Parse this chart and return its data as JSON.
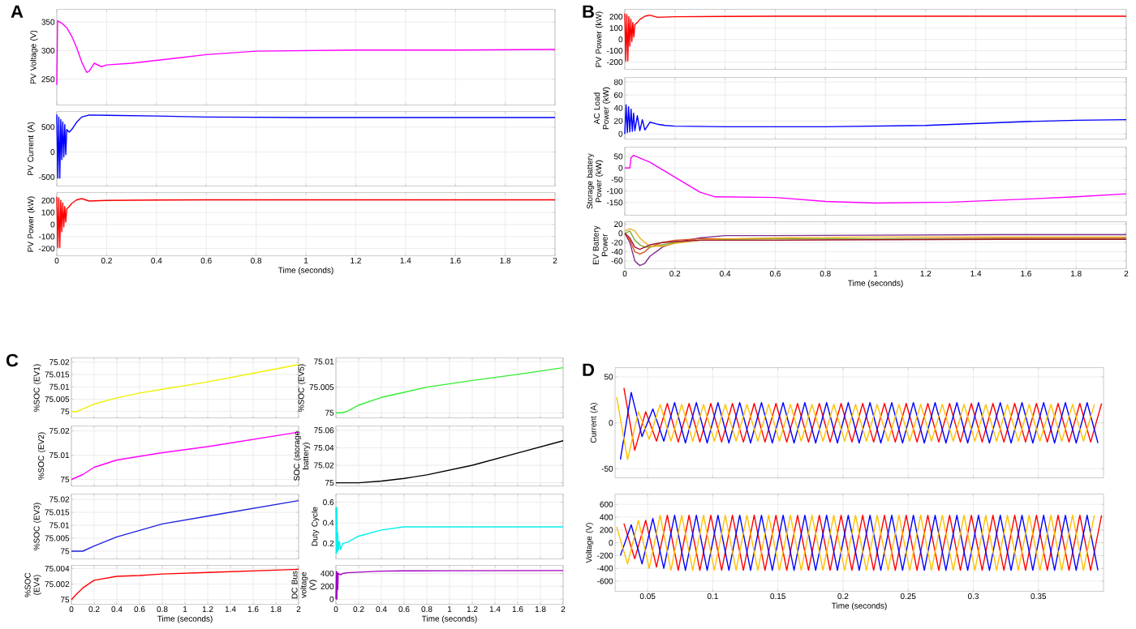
{
  "chart_data": [
    {
      "type": "line",
      "title": "A",
      "ylabel": "PV Voltage (V)",
      "grid": true,
      "tick_labels": "y",
      "xlim": [
        0,
        2
      ],
      "xticks": [
        0,
        0.2,
        0.4,
        0.6,
        0.8,
        1,
        1.2,
        1.4,
        1.6,
        1.8,
        2
      ],
      "ylim": [
        205,
        372
      ],
      "yticks": [
        250,
        300,
        350
      ],
      "x": [
        0,
        0.003,
        0.02,
        0.04,
        0.06,
        0.08,
        0.1,
        0.12,
        0.13,
        0.15,
        0.18,
        0.2,
        0.3,
        0.4,
        0.5,
        0.6,
        0.8,
        1,
        1.2,
        1.6,
        2
      ],
      "series": [
        {
          "color": "#ff00ff",
          "values": [
            240,
            352,
            348,
            340,
            325,
            305,
            280,
            262,
            264,
            278,
            272,
            275,
            278,
            283,
            288,
            293,
            299,
            300,
            301,
            301,
            302
          ]
        }
      ]
    },
    {
      "type": "line",
      "ylabel": "PV Current (A)",
      "grid": true,
      "tick_labels": "y",
      "xlim": [
        0,
        2
      ],
      "xticks": [
        0,
        0.2,
        0.4,
        0.6,
        0.8,
        1,
        1.2,
        1.4,
        1.6,
        1.8,
        2
      ],
      "ylim": [
        -680,
        810
      ],
      "yticks": [
        -500,
        0,
        500
      ],
      "x": [
        0,
        0.004,
        0.008,
        0.012,
        0.016,
        0.02,
        0.024,
        0.028,
        0.032,
        0.036,
        0.04,
        0.045,
        0.05,
        0.06,
        0.08,
        0.1,
        0.13,
        0.2,
        0.4,
        0.6,
        1,
        2
      ],
      "series": [
        {
          "color": "#0000ff",
          "values": [
            750,
            -520,
            700,
            -520,
            650,
            -150,
            600,
            -100,
            550,
            -50,
            450,
            420,
            400,
            450,
            600,
            700,
            740,
            735,
            720,
            700,
            690,
            690
          ]
        }
      ]
    },
    {
      "type": "line",
      "xlabel": "Time (seconds)",
      "ylabel": "PV Power (kW)",
      "grid": true,
      "xlim": [
        0,
        2
      ],
      "xticks": [
        0,
        0.2,
        0.4,
        0.6,
        0.8,
        1,
        1.2,
        1.4,
        1.6,
        1.8,
        2
      ],
      "ylim": [
        -260,
        265
      ],
      "yticks": [
        -200,
        -100,
        0,
        100,
        200
      ],
      "x": [
        0,
        0.004,
        0.008,
        0.012,
        0.016,
        0.02,
        0.024,
        0.028,
        0.032,
        0.036,
        0.04,
        0.045,
        0.05,
        0.06,
        0.08,
        0.1,
        0.13,
        0.2,
        0.4,
        0.6,
        1,
        2
      ],
      "series": [
        {
          "color": "#ff0000",
          "values": [
            230,
            -190,
            220,
            -190,
            200,
            -60,
            180,
            -20,
            150,
            20,
            130,
            140,
            150,
            175,
            205,
            215,
            195,
            200,
            203,
            205,
            205,
            205
          ]
        }
      ]
    },
    {
      "type": "line",
      "title": "B",
      "ylabel": "PV Power (kW)",
      "grid": true,
      "tick_labels": "y",
      "xlim": [
        0,
        2
      ],
      "xticks": [
        0,
        0.2,
        0.4,
        0.6,
        0.8,
        1,
        1.2,
        1.4,
        1.6,
        1.8,
        2
      ],
      "ylim": [
        -265,
        265
      ],
      "yticks": [
        -200,
        -100,
        0,
        100,
        200
      ],
      "x": [
        0,
        0.004,
        0.008,
        0.012,
        0.016,
        0.02,
        0.024,
        0.028,
        0.032,
        0.036,
        0.04,
        0.045,
        0.05,
        0.06,
        0.08,
        0.1,
        0.13,
        0.2,
        0.4,
        0.6,
        1,
        2
      ],
      "series": [
        {
          "color": "#ff0000",
          "values": [
            230,
            -190,
            220,
            -190,
            200,
            -60,
            180,
            -20,
            150,
            20,
            130,
            140,
            150,
            175,
            205,
            215,
            195,
            200,
            203,
            205,
            205,
            205
          ]
        }
      ]
    },
    {
      "type": "line",
      "ylabel": "AC Load Power (kW)",
      "grid": true,
      "tick_labels": "y",
      "xlim": [
        0,
        2
      ],
      "xticks": [
        0,
        0.2,
        0.4,
        0.6,
        0.8,
        1,
        1.2,
        1.4,
        1.6,
        1.8,
        2
      ],
      "ylim": [
        -8,
        87
      ],
      "yticks": [
        0,
        20,
        40,
        60,
        80
      ],
      "x": [
        0,
        0.005,
        0.01,
        0.015,
        0.02,
        0.025,
        0.03,
        0.035,
        0.04,
        0.05,
        0.06,
        0.07,
        0.08,
        0.1,
        0.13,
        0.16,
        0.2,
        0.4,
        0.8,
        1.2,
        1.4,
        1.6,
        1.8,
        2
      ],
      "series": [
        {
          "color": "#0000ff",
          "values": [
            0,
            45,
            2,
            42,
            3,
            38,
            4,
            32,
            5,
            28,
            5,
            22,
            6,
            18,
            15,
            13,
            12,
            11,
            11,
            13,
            16,
            19,
            21,
            22
          ]
        }
      ]
    },
    {
      "type": "line",
      "ylabel": "Storage battery Power (kW)",
      "grid": true,
      "tick_labels": "y",
      "xlim": [
        0,
        2
      ],
      "xticks": [
        0,
        0.2,
        0.4,
        0.6,
        0.8,
        1,
        1.2,
        1.4,
        1.6,
        1.8,
        2
      ],
      "ylim": [
        -205,
        90
      ],
      "yticks": [
        -150,
        -100,
        -50,
        0,
        50
      ],
      "x": [
        0,
        0.02,
        0.025,
        0.035,
        0.05,
        0.1,
        0.2,
        0.3,
        0.36,
        0.6,
        0.8,
        1,
        1.3,
        1.6,
        1.8,
        2
      ],
      "series": [
        {
          "color": "#ff00ff",
          "values": [
            0,
            0,
            45,
            55,
            48,
            25,
            -40,
            -105,
            -125,
            -128,
            -145,
            -152,
            -148,
            -135,
            -125,
            -112
          ]
        }
      ]
    },
    {
      "type": "line",
      "xlabel": "Time (seconds)",
      "ylabel": "EV Battery Power",
      "grid": true,
      "xlim": [
        0,
        2
      ],
      "xticks": [
        0,
        0.2,
        0.4,
        0.6,
        0.8,
        1,
        1.2,
        1.4,
        1.6,
        1.8,
        2
      ],
      "ylim": [
        -77,
        25
      ],
      "yticks": [
        -60,
        -40,
        -20,
        0,
        20
      ],
      "x": [
        0,
        0.02,
        0.04,
        0.06,
        0.08,
        0.1,
        0.15,
        0.2,
        0.3,
        0.4,
        0.6,
        1,
        1.5,
        2
      ],
      "series": [
        {
          "color": "#7e2f8e",
          "values": [
            0,
            -20,
            -60,
            -70,
            -65,
            -50,
            -30,
            -20,
            -10,
            -5,
            -5,
            -4,
            -3,
            -3
          ]
        },
        {
          "color": "#d95319",
          "values": [
            0,
            -15,
            -40,
            -45,
            -40,
            -30,
            -20,
            -15,
            -12,
            -12,
            -12,
            -12,
            -11,
            -11
          ]
        },
        {
          "color": "#77ac30",
          "values": [
            0,
            5,
            -15,
            -25,
            -30,
            -30,
            -25,
            -20,
            -15,
            -13,
            -12,
            -12,
            -12,
            -12
          ]
        },
        {
          "color": "#edb120",
          "values": [
            5,
            10,
            5,
            -10,
            -20,
            -28,
            -28,
            -22,
            -15,
            -12,
            -10,
            -8,
            -8,
            -8
          ]
        },
        {
          "color": "#a2142f",
          "values": [
            0,
            -10,
            -30,
            -35,
            -30,
            -25,
            -20,
            -18,
            -15,
            -15,
            -15,
            -14,
            -13,
            -13
          ]
        }
      ]
    },
    {
      "type": "line",
      "title": "C",
      "ylabel": "%SOC (EV1)",
      "grid": true,
      "tick_labels": "y",
      "xlim": [
        0,
        2
      ],
      "xticks": [
        0,
        0.2,
        0.4,
        0.6,
        0.8,
        1,
        1.2,
        1.4,
        1.6,
        1.8,
        2
      ],
      "ylim": [
        74.9974,
        75.0217
      ],
      "yticks": [
        75,
        75.005,
        75.01,
        75.015,
        75.02
      ],
      "x": [
        0,
        0.05,
        0.1,
        0.2,
        0.4,
        0.6,
        0.8,
        1.2,
        1.6,
        2
      ],
      "series": [
        {
          "color": "#f0f000",
          "values": [
            75,
            75,
            75.001,
            75.003,
            75.0055,
            75.0075,
            75.009,
            75.012,
            75.0155,
            75.019
          ]
        }
      ]
    },
    {
      "type": "line",
      "ylabel": "%SOC (EV2)",
      "grid": true,
      "tick_labels": "y",
      "xlim": [
        0,
        2
      ],
      "xticks": [
        0,
        0.2,
        0.4,
        0.6,
        0.8,
        1,
        1.2,
        1.4,
        1.6,
        1.8,
        2
      ],
      "ylim": [
        74.9973,
        75.022
      ],
      "yticks": [
        75,
        75.01,
        75.02
      ],
      "x": [
        0,
        0.05,
        0.1,
        0.2,
        0.4,
        0.6,
        0.8,
        1.2,
        1.6,
        2
      ],
      "series": [
        {
          "color": "#ff00ff",
          "values": [
            75,
            75.001,
            75.002,
            75.005,
            75.008,
            75.0095,
            75.011,
            75.0135,
            75.0165,
            75.0195
          ]
        }
      ]
    },
    {
      "type": "line",
      "ylabel": "%SOC (EV3)",
      "grid": true,
      "tick_labels": "y",
      "xlim": [
        0,
        2
      ],
      "xticks": [
        0,
        0.2,
        0.4,
        0.6,
        0.8,
        1,
        1.2,
        1.4,
        1.6,
        1.8,
        2
      ],
      "ylim": [
        74.997,
        75.022
      ],
      "yticks": [
        75,
        75.005,
        75.01,
        75.015,
        75.02
      ],
      "x": [
        0,
        0.05,
        0.1,
        0.2,
        0.4,
        0.6,
        0.8,
        1.2,
        1.6,
        2
      ],
      "series": [
        {
          "color": "#2020e0",
          "values": [
            75,
            75,
            75,
            75.002,
            75.0055,
            75.008,
            75.0105,
            75.0135,
            75.0165,
            75.0195
          ]
        }
      ]
    },
    {
      "type": "line",
      "xlabel": "Time (seconds)",
      "ylabel": "%SOC (EV4)",
      "grid": true,
      "xlim": [
        0,
        2
      ],
      "xticks": [
        0,
        0.2,
        0.4,
        0.6,
        0.8,
        1,
        1.2,
        1.4,
        1.6,
        1.8,
        2
      ],
      "ylim": [
        74.9994,
        75.0044
      ],
      "yticks": [
        75,
        75.002,
        75.004
      ],
      "x": [
        0,
        0.05,
        0.1,
        0.2,
        0.4,
        0.6,
        0.8,
        1.2,
        1.6,
        2
      ],
      "series": [
        {
          "color": "#ff0000",
          "values": [
            75,
            75.0008,
            75.0015,
            75.0025,
            75.003,
            75.0031,
            75.0033,
            75.0035,
            75.0037,
            75.0039
          ]
        }
      ]
    },
    {
      "type": "line",
      "ylabel": "%SOC (EV5)",
      "grid": true,
      "tick_labels": "y",
      "xlim": [
        0,
        2
      ],
      "xticks": [
        0,
        0.2,
        0.4,
        0.6,
        0.8,
        1,
        1.2,
        1.4,
        1.6,
        1.8,
        2
      ],
      "ylim": [
        74.999,
        75.0107
      ],
      "yticks": [
        75,
        75.005,
        75.01
      ],
      "x": [
        0,
        0.05,
        0.1,
        0.2,
        0.4,
        0.6,
        0.8,
        1.2,
        1.6,
        2
      ],
      "series": [
        {
          "color": "#33ee33",
          "values": [
            75,
            75,
            75.0003,
            75.0015,
            75.003,
            75.004,
            75.005,
            75.0063,
            75.0075,
            75.0088
          ]
        }
      ]
    },
    {
      "type": "line",
      "ylabel": "SOC (storage battery)",
      "grid": true,
      "tick_labels": "y",
      "xlim": [
        0,
        2
      ],
      "xticks": [
        0,
        0.2,
        0.4,
        0.6,
        0.8,
        1,
        1.2,
        1.4,
        1.6,
        1.8,
        2
      ],
      "ylim": [
        74.9963,
        75.0648
      ],
      "yticks": [
        75,
        75.02,
        75.04,
        75.06
      ],
      "x": [
        0,
        0.05,
        0.1,
        0.2,
        0.4,
        0.6,
        0.8,
        1.2,
        1.6,
        2
      ],
      "series": [
        {
          "color": "#000000",
          "values": [
            75,
            75,
            75,
            75,
            75.002,
            75.005,
            75.009,
            75.02,
            75.034,
            75.048
          ]
        }
      ]
    },
    {
      "type": "line",
      "ylabel": "Duty Cycle",
      "grid": true,
      "tick_labels": "y",
      "xlim": [
        0,
        2
      ],
      "xticks": [
        0,
        0.2,
        0.4,
        0.6,
        0.8,
        1,
        1.2,
        1.4,
        1.6,
        1.8,
        2
      ],
      "ylim": [
        0.048,
        0.679
      ],
      "yticks": [
        0.2,
        0.4,
        0.6
      ],
      "x": [
        0,
        0.004,
        0.008,
        0.012,
        0.016,
        0.02,
        0.03,
        0.04,
        0.06,
        0.1,
        0.2,
        0.4,
        0.6,
        1,
        2
      ],
      "series": [
        {
          "color": "#00f0f0",
          "values": [
            0.55,
            0.1,
            0.55,
            0.12,
            0.3,
            0.13,
            0.22,
            0.14,
            0.2,
            0.21,
            0.27,
            0.33,
            0.36,
            0.36,
            0.36
          ]
        }
      ]
    },
    {
      "type": "line",
      "xlabel": "Time (seconds)",
      "ylabel": "DC Bus voltage (V)",
      "grid": true,
      "xlim": [
        0,
        2
      ],
      "xticks": [
        0,
        0.2,
        0.4,
        0.6,
        0.8,
        1,
        1.2,
        1.4,
        1.6,
        1.8,
        2
      ],
      "ylim": [
        -80,
        524
      ],
      "yticks": [
        0,
        200,
        400
      ],
      "x": [
        0,
        0.004,
        0.008,
        0.012,
        0.016,
        0.02,
        0.04,
        0.06,
        0.1,
        0.2,
        0.4,
        0.6,
        1,
        2
      ],
      "series": [
        {
          "color": "#a000c0",
          "values": [
            0,
            430,
            0,
            420,
            150,
            400,
            380,
            400,
            410,
            420,
            435,
            440,
            442,
            445
          ]
        }
      ]
    },
    {
      "type": "line",
      "title": "D",
      "ylabel": "Current (A)",
      "grid": true,
      "tick_labels": "y",
      "xlim": [
        0.025,
        0.4
      ],
      "xticks": [
        0.05,
        0.1,
        0.15,
        0.2,
        0.25,
        0.3,
        0.35
      ],
      "ylim": [
        -60,
        60
      ],
      "yticks": [
        -50,
        0,
        50
      ],
      "series": [
        {
          "color": "#ff0000",
          "x": [
            0.0318,
            0.0401,
            0.0485,
            0.0568,
            0.0651,
            0.0735,
            0.0818,
            0.0901,
            0.0985,
            0.1068,
            0.1151,
            0.1235,
            0.1318,
            0.1401,
            0.1485,
            0.1568,
            0.1651,
            0.1735,
            0.1818,
            0.1901,
            0.1985,
            0.2068,
            0.2151,
            0.2235,
            0.2318,
            0.2401,
            0.2485,
            0.2568,
            0.2651,
            0.2735,
            0.2818,
            0.2901,
            0.2985,
            0.3068,
            0.3151,
            0.3235,
            0.3318,
            0.3401,
            0.3485,
            0.3568,
            0.3651,
            0.3735,
            0.3818,
            0.3901,
            0.3985
          ],
          "values": [
            38,
            -30,
            12,
            -20,
            21,
            -21,
            21,
            -21,
            21,
            -21,
            21,
            -21,
            21,
            -21,
            21,
            -21,
            21,
            -21,
            21,
            -21,
            21,
            -21,
            21,
            -21,
            21,
            -21,
            21,
            -21,
            21,
            -21,
            21,
            -21,
            21,
            -21,
            21,
            -21,
            21,
            -21,
            21,
            -21,
            21,
            -21,
            21,
            -21,
            21
          ]
        },
        {
          "color": "#0000ff",
          "x": [
            0.0291,
            0.0374,
            0.0457,
            0.054,
            0.0624,
            0.0707,
            0.079,
            0.0874,
            0.0957,
            0.104,
            0.1124,
            0.1207,
            0.129,
            0.1374,
            0.1457,
            0.154,
            0.1624,
            0.1707,
            0.179,
            0.1874,
            0.1957,
            0.204,
            0.2124,
            0.2207,
            0.229,
            0.2374,
            0.2457,
            0.254,
            0.2624,
            0.2707,
            0.279,
            0.2874,
            0.2957,
            0.304,
            0.3124,
            0.3207,
            0.329,
            0.3374,
            0.3457,
            0.354,
            0.3624,
            0.3707,
            0.379,
            0.3874,
            0.3957
          ],
          "values": [
            -40,
            33,
            -15,
            15,
            -20,
            22,
            -22,
            22,
            -22,
            22,
            -22,
            22,
            -22,
            22,
            -22,
            22,
            -22,
            22,
            -22,
            22,
            -22,
            22,
            -22,
            22,
            -22,
            22,
            -22,
            22,
            -22,
            22,
            -22,
            22,
            -22,
            22,
            -22,
            22,
            -22,
            22,
            -22,
            22,
            -22,
            22,
            -22,
            22,
            -22
          ]
        },
        {
          "color": "#ffc000",
          "x": [
            0.0262,
            0.0346,
            0.0429,
            0.0512,
            0.0596,
            0.0679,
            0.0762,
            0.0846,
            0.0929,
            0.1012,
            0.1096,
            0.1179,
            0.1262,
            0.1346,
            0.1429,
            0.1512,
            0.1596,
            0.1679,
            0.1762,
            0.1846,
            0.1929,
            0.2012,
            0.2096,
            0.2179,
            0.2262,
            0.2346,
            0.2429,
            0.2512,
            0.2596,
            0.2679,
            0.2762,
            0.2846,
            0.2929,
            0.3012,
            0.3096,
            0.3179,
            0.3262,
            0.3346,
            0.3429,
            0.3512,
            0.3596,
            0.3679,
            0.3762,
            0.3846,
            0.3929
          ],
          "values": [
            28,
            -40,
            12,
            -18,
            20,
            -20,
            20,
            -20,
            20,
            -20,
            20,
            -20,
            20,
            -20,
            20,
            -20,
            20,
            -20,
            20,
            -20,
            20,
            -20,
            20,
            -20,
            20,
            -20,
            20,
            -20,
            20,
            -20,
            20,
            -20,
            20,
            -20,
            20,
            -20,
            20,
            -20,
            20,
            -20,
            20,
            -20,
            20,
            -20,
            20
          ]
        }
      ]
    },
    {
      "type": "line",
      "xlabel": "Time (seconds)",
      "ylabel": "Voltage (V)",
      "grid": true,
      "xlim": [
        0.025,
        0.4
      ],
      "xticks": [
        0.05,
        0.1,
        0.15,
        0.2,
        0.25,
        0.3,
        0.35
      ],
      "ylim": [
        -760,
        760
      ],
      "yticks": [
        -600,
        -400,
        -200,
        0,
        200,
        400,
        600
      ],
      "series": [
        {
          "color": "#ff0000",
          "x": [
            0.0318,
            0.0401,
            0.0485,
            0.0568,
            0.0651,
            0.0735,
            0.0818,
            0.0901,
            0.0985,
            0.1068,
            0.1151,
            0.1235,
            0.1318,
            0.1401,
            0.1485,
            0.1568,
            0.1651,
            0.1735,
            0.1818,
            0.1901,
            0.1985,
            0.2068,
            0.2151,
            0.2235,
            0.2318,
            0.2401,
            0.2485,
            0.2568,
            0.2651,
            0.2735,
            0.2818,
            0.2901,
            0.2985,
            0.3068,
            0.3151,
            0.3235,
            0.3318,
            0.3401,
            0.3485,
            0.3568,
            0.3651,
            0.3735,
            0.3818,
            0.3901,
            0.3985
          ],
          "values": [
            300,
            -250,
            350,
            -380,
            430,
            -430,
            430,
            -430,
            430,
            -430,
            430,
            -430,
            430,
            -430,
            430,
            -430,
            430,
            -430,
            430,
            -430,
            430,
            -430,
            430,
            -430,
            430,
            -430,
            430,
            -430,
            430,
            -430,
            430,
            -430,
            430,
            -430,
            430,
            -430,
            430,
            -430,
            430,
            -430,
            430,
            -430,
            430,
            -430,
            430
          ]
        },
        {
          "color": "#0000ff",
          "x": [
            0.0291,
            0.0374,
            0.0457,
            0.054,
            0.0624,
            0.0707,
            0.079,
            0.0874,
            0.0957,
            0.104,
            0.1124,
            0.1207,
            0.129,
            0.1374,
            0.1457,
            0.154,
            0.1624,
            0.1707,
            0.179,
            0.1874,
            0.1957,
            0.204,
            0.2124,
            0.2207,
            0.229,
            0.2374,
            0.2457,
            0.254,
            0.2624,
            0.2707,
            0.279,
            0.2874,
            0.2957,
            0.304,
            0.3124,
            0.3207,
            0.329,
            0.3374,
            0.3457,
            0.354,
            0.3624,
            0.3707,
            0.379,
            0.3874,
            0.3957
          ],
          "values": [
            -200,
            280,
            -330,
            380,
            -400,
            430,
            -430,
            430,
            -430,
            430,
            -430,
            430,
            -430,
            430,
            -430,
            430,
            -430,
            430,
            -430,
            430,
            -430,
            430,
            -430,
            430,
            -430,
            430,
            -430,
            430,
            -430,
            430,
            -430,
            430,
            -430,
            430,
            -430,
            430,
            -430,
            430,
            -430,
            430,
            -430,
            430,
            -430,
            430,
            -430
          ]
        },
        {
          "color": "#ffc000",
          "x": [
            0.0262,
            0.0346,
            0.0429,
            0.0512,
            0.0596,
            0.0679,
            0.0762,
            0.0846,
            0.0929,
            0.1012,
            0.1096,
            0.1179,
            0.1262,
            0.1346,
            0.1429,
            0.1512,
            0.1596,
            0.1679,
            0.1762,
            0.1846,
            0.1929,
            0.2012,
            0.2096,
            0.2179,
            0.2262,
            0.2346,
            0.2429,
            0.2512,
            0.2596,
            0.2679,
            0.2762,
            0.2846,
            0.2929,
            0.3012,
            0.3096,
            0.3179,
            0.3262,
            0.3346,
            0.3429,
            0.3512,
            0.3596,
            0.3679,
            0.3762,
            0.3846,
            0.3929
          ],
          "values": [
            250,
            -330,
            350,
            -400,
            430,
            -430,
            430,
            -430,
            430,
            -430,
            430,
            -430,
            430,
            -430,
            430,
            -430,
            430,
            -430,
            430,
            -430,
            430,
            -430,
            430,
            -430,
            430,
            -430,
            430,
            -430,
            430,
            -430,
            430,
            -430,
            430,
            -430,
            430,
            -430,
            430,
            -430,
            430,
            -430,
            430,
            -430,
            430,
            -430,
            430
          ]
        }
      ]
    }
  ]
}
